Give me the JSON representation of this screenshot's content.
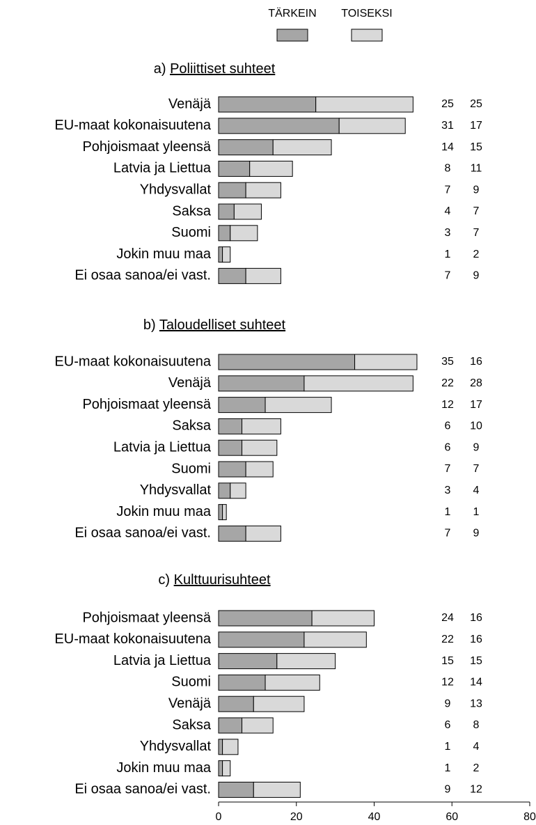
{
  "chart_data": {
    "type": "bar",
    "orientation": "horizontal",
    "stacked": true,
    "series": [
      {
        "name": "TÄRKEIN",
        "color": "#a6a6a6"
      },
      {
        "name": "TOISEKSI",
        "color": "#d9d9d9"
      }
    ],
    "xlim": [
      0,
      80
    ],
    "xticks": [
      0,
      20,
      40,
      60,
      80
    ],
    "panels": [
      {
        "label": "a)",
        "title": "Poliittiset suhteet",
        "categories": [
          "Venäjä",
          "EU-maat kokonaisuutena",
          "Pohjoismaat yleensä",
          "Latvia ja Liettua",
          "Yhdysvallat",
          "Saksa",
          "Suomi",
          "Jokin muu maa",
          "Ei osaa sanoa/ei vast."
        ],
        "series": [
          {
            "values": [
              25,
              31,
              14,
              8,
              7,
              4,
              3,
              1,
              7
            ]
          },
          {
            "values": [
              25,
              17,
              15,
              11,
              9,
              7,
              7,
              2,
              9
            ]
          }
        ]
      },
      {
        "label": "b)",
        "title": "Taloudelliset suhteet",
        "categories": [
          "EU-maat kokonaisuutena",
          "Venäjä",
          "Pohjoismaat yleensä",
          "Saksa",
          "Latvia ja Liettua",
          "Suomi",
          "Yhdysvallat",
          "Jokin muu maa",
          "Ei osaa sanoa/ei vast."
        ],
        "series": [
          {
            "values": [
              35,
              22,
              12,
              6,
              6,
              7,
              3,
              1,
              7
            ]
          },
          {
            "values": [
              16,
              28,
              17,
              10,
              9,
              7,
              4,
              1,
              9
            ]
          }
        ]
      },
      {
        "label": "c)",
        "title": "Kulttuurisuhteet",
        "categories": [
          "Pohjoismaat yleensä",
          "EU-maat kokonaisuutena",
          "Latvia ja Liettua",
          "Suomi",
          "Venäjä",
          "Saksa",
          "Yhdysvallat",
          "Jokin muu maa",
          "Ei osaa sanoa/ei vast."
        ],
        "series": [
          {
            "values": [
              24,
              22,
              15,
              12,
              9,
              6,
              1,
              1,
              9
            ]
          },
          {
            "values": [
              16,
              16,
              15,
              14,
              13,
              8,
              4,
              2,
              12
            ]
          }
        ]
      }
    ]
  }
}
